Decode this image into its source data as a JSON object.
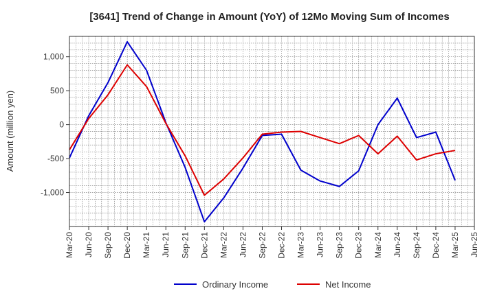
{
  "chart_data": {
    "type": "line",
    "title": "[3641]  Trend of Change in Amount (YoY) of 12Mo Moving Sum of Incomes",
    "ylabel": "Amount (million yen)",
    "xlabel": "",
    "ylim": [
      -1500,
      1300
    ],
    "yticks": [
      -1000,
      -500,
      0,
      500,
      1000
    ],
    "ytick_labels": [
      "-1,000",
      "-500",
      "0",
      "500",
      "1,000"
    ],
    "grid": true,
    "legend_position": "bottom",
    "x": [
      "Mar-20",
      "Jun-20",
      "Sep-20",
      "Dec-20",
      "Mar-21",
      "Jun-21",
      "Sep-21",
      "Dec-21",
      "Mar-22",
      "Jun-22",
      "Sep-22",
      "Dec-22",
      "Mar-23",
      "Jun-23",
      "Sep-23",
      "Dec-23",
      "Mar-24",
      "Jun-24",
      "Sep-24",
      "Dec-24",
      "Mar-25",
      "Jun-25"
    ],
    "series": [
      {
        "name": "Ordinary Income",
        "color": "#0000cc",
        "values": [
          -490,
          130,
          620,
          1220,
          800,
          30,
          -630,
          -1430,
          -1080,
          -640,
          -160,
          -140,
          -670,
          -830,
          -910,
          -680,
          0,
          390,
          -190,
          -110,
          -820,
          null
        ]
      },
      {
        "name": "Net Income",
        "color": "#dd0000",
        "values": [
          -370,
          90,
          440,
          880,
          560,
          20,
          -460,
          -1040,
          -800,
          -490,
          -140,
          -110,
          -100,
          -190,
          -280,
          -160,
          -430,
          -170,
          -520,
          -430,
          -380,
          null
        ]
      }
    ]
  }
}
